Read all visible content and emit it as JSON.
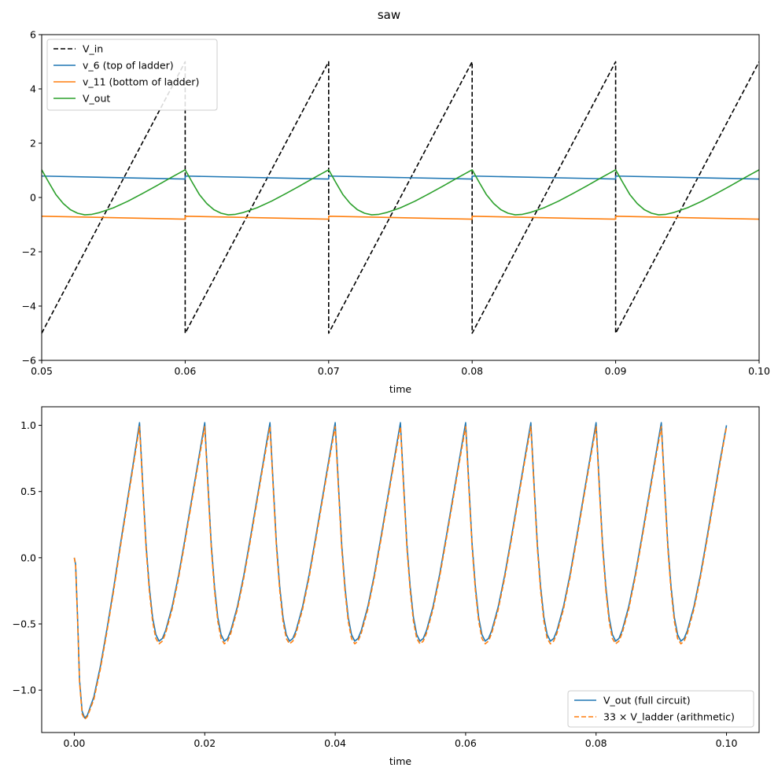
{
  "figure": {
    "title": "saw"
  },
  "chart_data": [
    {
      "type": "line",
      "xlabel": "time",
      "ylabel": "",
      "xlim": [
        0.05,
        0.1
      ],
      "ylim": [
        -6,
        6
      ],
      "xticks": [
        0.05,
        0.06,
        0.07,
        0.08,
        0.09,
        0.1
      ],
      "xtick_labels": [
        "0.05",
        "0.06",
        "0.07",
        "0.08",
        "0.09",
        "0.10"
      ],
      "yticks": [
        -6,
        -4,
        -2,
        0,
        2,
        4,
        6
      ],
      "ytick_labels": [
        "−6",
        "−4",
        "−2",
        "0",
        "2",
        "4",
        "6"
      ],
      "grid": false,
      "legend_position": "top-left",
      "series": [
        {
          "name": "V_in",
          "color": "#000000",
          "style": "dashed",
          "x": [
            0.05,
            0.06,
            0.06,
            0.07,
            0.07,
            0.08,
            0.08,
            0.09,
            0.09,
            0.1
          ],
          "y": [
            -5,
            5,
            -5,
            5,
            -5,
            5,
            -5,
            5,
            -5,
            5
          ]
        },
        {
          "name": "v_6 (top of ladder)",
          "color": "#1f77b4",
          "style": "solid",
          "x": [
            0.05,
            0.06,
            0.06,
            0.07,
            0.07,
            0.08,
            0.08,
            0.09,
            0.09,
            0.1
          ],
          "y": [
            0.79,
            0.68,
            0.79,
            0.68,
            0.79,
            0.68,
            0.79,
            0.68,
            0.79,
            0.68
          ]
        },
        {
          "name": "v_11 (bottom of ladder)",
          "color": "#ff7f0e",
          "style": "solid",
          "x": [
            0.05,
            0.06,
            0.06,
            0.07,
            0.07,
            0.08,
            0.08,
            0.09,
            0.09,
            0.1
          ],
          "y": [
            -0.69,
            -0.8,
            -0.69,
            -0.8,
            -0.69,
            -0.8,
            -0.69,
            -0.8,
            -0.69,
            -0.8
          ]
        },
        {
          "name": "V_out",
          "color": "#2ca02c",
          "style": "solid",
          "x": [
            0.05,
            0.0505,
            0.051,
            0.0515,
            0.052,
            0.0525,
            0.053,
            0.0535,
            0.054,
            0.055,
            0.056,
            0.057,
            0.058,
            0.059,
            0.06,
            0.0605,
            0.061,
            0.0615,
            0.062,
            0.0625,
            0.063,
            0.0635,
            0.064,
            0.065,
            0.066,
            0.067,
            0.068,
            0.069,
            0.07,
            0.0705,
            0.071,
            0.0715,
            0.072,
            0.0725,
            0.073,
            0.0735,
            0.074,
            0.075,
            0.076,
            0.077,
            0.078,
            0.079,
            0.08,
            0.0805,
            0.081,
            0.0815,
            0.082,
            0.0825,
            0.083,
            0.0835,
            0.084,
            0.085,
            0.086,
            0.087,
            0.088,
            0.089,
            0.09,
            0.0905,
            0.091,
            0.0915,
            0.092,
            0.0925,
            0.093,
            0.0935,
            0.094,
            0.095,
            0.096,
            0.097,
            0.098,
            0.099,
            0.1
          ],
          "y": [
            1.02,
            0.55,
            0.1,
            -0.22,
            -0.45,
            -0.58,
            -0.64,
            -0.62,
            -0.56,
            -0.38,
            -0.14,
            0.14,
            0.43,
            0.73,
            1.02,
            0.55,
            0.1,
            -0.22,
            -0.45,
            -0.58,
            -0.64,
            -0.62,
            -0.56,
            -0.38,
            -0.14,
            0.14,
            0.43,
            0.73,
            1.02,
            0.55,
            0.1,
            -0.22,
            -0.45,
            -0.58,
            -0.64,
            -0.62,
            -0.56,
            -0.38,
            -0.14,
            0.14,
            0.43,
            0.73,
            1.02,
            0.55,
            0.1,
            -0.22,
            -0.45,
            -0.58,
            -0.64,
            -0.62,
            -0.56,
            -0.38,
            -0.14,
            0.14,
            0.43,
            0.73,
            1.02,
            0.55,
            0.1,
            -0.22,
            -0.45,
            -0.58,
            -0.64,
            -0.62,
            -0.56,
            -0.38,
            -0.14,
            0.14,
            0.43,
            0.73,
            1.02
          ]
        }
      ]
    },
    {
      "type": "line",
      "xlabel": "time",
      "ylabel": "",
      "xlim": [
        -0.005,
        0.105
      ],
      "ylim": [
        -1.32,
        1.14
      ],
      "xticks": [
        0.0,
        0.02,
        0.04,
        0.06,
        0.08,
        0.1
      ],
      "xtick_labels": [
        "0.00",
        "0.02",
        "0.04",
        "0.06",
        "0.08",
        "0.10"
      ],
      "yticks": [
        -1.0,
        -0.5,
        0.0,
        0.5,
        1.0
      ],
      "ytick_labels": [
        "−1.0",
        "−0.5",
        "0.0",
        "0.5",
        "1.0"
      ],
      "grid": false,
      "legend_position": "bottom-right",
      "series": [
        {
          "name": "V_out (full circuit)",
          "color": "#1f77b4",
          "style": "solid",
          "x": [
            0.0,
            0.0002,
            0.0005,
            0.0008,
            0.0012,
            0.0016,
            0.002,
            0.003,
            0.004,
            0.005,
            0.006,
            0.007,
            0.008,
            0.009,
            0.01,
            0.0105,
            0.011,
            0.0115,
            0.012,
            0.0125,
            0.013,
            0.0135,
            0.014,
            0.015,
            0.016,
            0.017,
            0.018,
            0.019,
            0.02,
            0.0205,
            0.021,
            0.0215,
            0.022,
            0.0225,
            0.023,
            0.0235,
            0.024,
            0.025,
            0.026,
            0.027,
            0.028,
            0.029,
            0.03,
            0.0305,
            0.031,
            0.0315,
            0.032,
            0.0325,
            0.033,
            0.0335,
            0.034,
            0.035,
            0.036,
            0.037,
            0.038,
            0.039,
            0.04,
            0.0405,
            0.041,
            0.0415,
            0.042,
            0.0425,
            0.043,
            0.0435,
            0.044,
            0.045,
            0.046,
            0.047,
            0.048,
            0.049,
            0.05,
            0.0505,
            0.051,
            0.0515,
            0.052,
            0.0525,
            0.053,
            0.0535,
            0.054,
            0.055,
            0.056,
            0.057,
            0.058,
            0.059,
            0.06,
            0.0605,
            0.061,
            0.0615,
            0.062,
            0.0625,
            0.063,
            0.0635,
            0.064,
            0.065,
            0.066,
            0.067,
            0.068,
            0.069,
            0.07,
            0.0705,
            0.071,
            0.0715,
            0.072,
            0.0725,
            0.073,
            0.0735,
            0.074,
            0.075,
            0.076,
            0.077,
            0.078,
            0.079,
            0.08,
            0.0805,
            0.081,
            0.0815,
            0.082,
            0.0825,
            0.083,
            0.0835,
            0.084,
            0.085,
            0.086,
            0.087,
            0.088,
            0.089,
            0.09,
            0.0905,
            0.091,
            0.0915,
            0.092,
            0.0925,
            0.093,
            0.0935,
            0.094,
            0.095,
            0.096,
            0.097,
            0.098,
            0.099,
            0.1
          ],
          "y": [
            0.0,
            -0.05,
            -0.45,
            -0.92,
            -1.16,
            -1.21,
            -1.19,
            -1.05,
            -0.82,
            -0.54,
            -0.24,
            0.08,
            0.39,
            0.7,
            1.02,
            0.55,
            0.1,
            -0.22,
            -0.45,
            -0.58,
            -0.63,
            -0.61,
            -0.55,
            -0.37,
            -0.13,
            0.15,
            0.44,
            0.73,
            1.02,
            0.55,
            0.1,
            -0.22,
            -0.45,
            -0.58,
            -0.63,
            -0.61,
            -0.55,
            -0.37,
            -0.13,
            0.15,
            0.44,
            0.73,
            1.02,
            0.55,
            0.1,
            -0.22,
            -0.45,
            -0.58,
            -0.63,
            -0.61,
            -0.55,
            -0.37,
            -0.13,
            0.15,
            0.44,
            0.73,
            1.02,
            0.55,
            0.1,
            -0.22,
            -0.45,
            -0.58,
            -0.63,
            -0.61,
            -0.55,
            -0.37,
            -0.13,
            0.15,
            0.44,
            0.73,
            1.02,
            0.55,
            0.1,
            -0.22,
            -0.45,
            -0.58,
            -0.63,
            -0.61,
            -0.55,
            -0.37,
            -0.13,
            0.15,
            0.44,
            0.73,
            1.02,
            0.55,
            0.1,
            -0.22,
            -0.45,
            -0.58,
            -0.63,
            -0.61,
            -0.55,
            -0.37,
            -0.13,
            0.15,
            0.44,
            0.73,
            1.02,
            0.55,
            0.1,
            -0.22,
            -0.45,
            -0.58,
            -0.63,
            -0.61,
            -0.55,
            -0.37,
            -0.13,
            0.15,
            0.44,
            0.73,
            1.02,
            0.55,
            0.1,
            -0.22,
            -0.45,
            -0.58,
            -0.63,
            -0.61,
            -0.55,
            -0.37,
            -0.13,
            0.15,
            0.44,
            0.73,
            1.02,
            0.55,
            0.1,
            -0.22,
            -0.45,
            -0.58,
            -0.63,
            -0.61,
            -0.55,
            -0.37,
            -0.13,
            0.15,
            0.44,
            0.73,
            1.0
          ]
        },
        {
          "name": "33 × V_ladder (arithmetic)",
          "color": "#ff7f0e",
          "style": "dashed",
          "x": [
            0.0,
            0.0002,
            0.0005,
            0.0008,
            0.0012,
            0.0016,
            0.002,
            0.003,
            0.004,
            0.005,
            0.006,
            0.007,
            0.008,
            0.009,
            0.01,
            0.0105,
            0.011,
            0.0115,
            0.012,
            0.0125,
            0.013,
            0.0135,
            0.014,
            0.015,
            0.016,
            0.017,
            0.018,
            0.019,
            0.02,
            0.0205,
            0.021,
            0.0215,
            0.022,
            0.0225,
            0.023,
            0.0235,
            0.024,
            0.025,
            0.026,
            0.027,
            0.028,
            0.029,
            0.03,
            0.0305,
            0.031,
            0.0315,
            0.032,
            0.0325,
            0.033,
            0.0335,
            0.034,
            0.035,
            0.036,
            0.037,
            0.038,
            0.039,
            0.04,
            0.0405,
            0.041,
            0.0415,
            0.042,
            0.0425,
            0.043,
            0.0435,
            0.044,
            0.045,
            0.046,
            0.047,
            0.048,
            0.049,
            0.05,
            0.0505,
            0.051,
            0.0515,
            0.052,
            0.0525,
            0.053,
            0.0535,
            0.054,
            0.055,
            0.056,
            0.057,
            0.058,
            0.059,
            0.06,
            0.0605,
            0.061,
            0.0615,
            0.062,
            0.0625,
            0.063,
            0.0635,
            0.064,
            0.065,
            0.066,
            0.067,
            0.068,
            0.069,
            0.07,
            0.0705,
            0.071,
            0.0715,
            0.072,
            0.0725,
            0.073,
            0.0735,
            0.074,
            0.075,
            0.076,
            0.077,
            0.078,
            0.079,
            0.08,
            0.0805,
            0.081,
            0.0815,
            0.082,
            0.0825,
            0.083,
            0.0835,
            0.084,
            0.085,
            0.086,
            0.087,
            0.088,
            0.089,
            0.09,
            0.0905,
            0.091,
            0.0915,
            0.092,
            0.0925,
            0.093,
            0.0935,
            0.094,
            0.095,
            0.096,
            0.097,
            0.098,
            0.099,
            0.1
          ],
          "y": [
            0.0,
            -0.06,
            -0.47,
            -0.94,
            -1.18,
            -1.22,
            -1.2,
            -1.07,
            -0.84,
            -0.56,
            -0.26,
            0.06,
            0.37,
            0.68,
            0.99,
            0.52,
            0.07,
            -0.25,
            -0.48,
            -0.61,
            -0.65,
            -0.63,
            -0.57,
            -0.39,
            -0.15,
            0.13,
            0.42,
            0.71,
            0.99,
            0.52,
            0.07,
            -0.25,
            -0.48,
            -0.61,
            -0.65,
            -0.63,
            -0.57,
            -0.39,
            -0.15,
            0.13,
            0.42,
            0.71,
            0.99,
            0.52,
            0.07,
            -0.25,
            -0.48,
            -0.61,
            -0.65,
            -0.63,
            -0.57,
            -0.39,
            -0.15,
            0.13,
            0.42,
            0.71,
            0.99,
            0.52,
            0.07,
            -0.25,
            -0.48,
            -0.61,
            -0.65,
            -0.63,
            -0.57,
            -0.39,
            -0.15,
            0.13,
            0.42,
            0.71,
            0.99,
            0.52,
            0.07,
            -0.25,
            -0.48,
            -0.61,
            -0.65,
            -0.63,
            -0.57,
            -0.39,
            -0.15,
            0.13,
            0.42,
            0.71,
            0.99,
            0.52,
            0.07,
            -0.25,
            -0.48,
            -0.61,
            -0.65,
            -0.63,
            -0.57,
            -0.39,
            -0.15,
            0.13,
            0.42,
            0.71,
            0.99,
            0.52,
            0.07,
            -0.25,
            -0.48,
            -0.61,
            -0.65,
            -0.63,
            -0.57,
            -0.39,
            -0.15,
            0.13,
            0.42,
            0.71,
            0.99,
            0.52,
            0.07,
            -0.25,
            -0.48,
            -0.61,
            -0.65,
            -0.63,
            -0.57,
            -0.39,
            -0.15,
            0.13,
            0.42,
            0.71,
            0.99,
            0.52,
            0.07,
            -0.25,
            -0.48,
            -0.61,
            -0.65,
            -0.63,
            -0.57,
            -0.39,
            -0.15,
            0.13,
            0.42,
            0.71,
            0.99
          ]
        }
      ]
    }
  ]
}
